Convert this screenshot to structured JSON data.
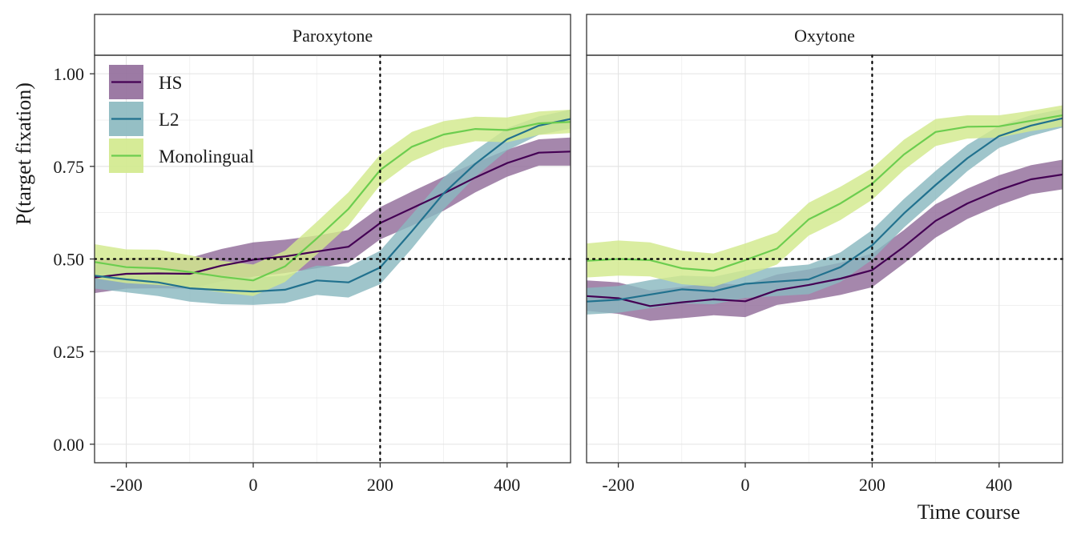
{
  "chart_data": {
    "type": "line",
    "ylabel": "P(target fixation)",
    "xlabel": "Time course",
    "xlim": [
      -250,
      500
    ],
    "ylim": [
      -0.05,
      1.05
    ],
    "x_ticks": [
      "-200",
      "0",
      "200",
      "400"
    ],
    "y_ticks": [
      "0.00",
      "0.25",
      "0.50",
      "0.75",
      "1.00"
    ],
    "x_tick_values": [
      -200,
      0,
      200,
      400
    ],
    "y_tick_values": [
      0,
      0.25,
      0.5,
      0.75,
      1.0
    ],
    "grid": true,
    "reference_lines": {
      "x": 200,
      "y": 0.5
    },
    "legend_position": "top-left",
    "legend": [
      {
        "name": "HS",
        "color": "#440154"
      },
      {
        "name": "L2",
        "color": "#21718e"
      },
      {
        "name": "Monolingual",
        "color": "#6ccd4f"
      }
    ],
    "panels": [
      {
        "title": "Paroxytone",
        "x": [
          -250,
          -200,
          -150,
          -100,
          -50,
          0,
          50,
          100,
          150,
          200,
          250,
          300,
          350,
          400,
          450,
          500
        ],
        "series": [
          {
            "name": "HS",
            "color": "#440154",
            "fill": "#916c9a",
            "y": [
              0.45,
              0.46,
              0.461,
              0.46,
              0.482,
              0.498,
              0.507,
              0.52,
              0.533,
              0.597,
              0.637,
              0.677,
              0.72,
              0.759,
              0.787,
              0.79
            ],
            "lower": [
              0.408,
              0.42,
              0.421,
              0.42,
              0.44,
              0.452,
              0.462,
              0.475,
              0.49,
              0.553,
              0.59,
              0.63,
              0.68,
              0.722,
              0.752,
              0.752
            ],
            "upper": [
              0.495,
              0.503,
              0.505,
              0.503,
              0.527,
              0.545,
              0.552,
              0.563,
              0.578,
              0.64,
              0.682,
              0.722,
              0.76,
              0.795,
              0.823,
              0.828
            ]
          },
          {
            "name": "L2",
            "color": "#21718e",
            "fill": "#8ab8bf",
            "y": [
              0.455,
              0.445,
              0.437,
              0.421,
              0.416,
              0.412,
              0.417,
              0.442,
              0.437,
              0.477,
              0.575,
              0.677,
              0.757,
              0.823,
              0.86,
              0.878
            ],
            "lower": [
              0.42,
              0.41,
              0.4,
              0.385,
              0.378,
              0.376,
              0.381,
              0.403,
              0.396,
              0.432,
              0.528,
              0.634,
              0.722,
              0.793,
              0.835,
              0.852
            ],
            "upper": [
              0.492,
              0.482,
              0.474,
              0.458,
              0.455,
              0.45,
              0.455,
              0.482,
              0.479,
              0.522,
              0.62,
              0.72,
              0.793,
              0.853,
              0.885,
              0.903
            ]
          },
          {
            "name": "Monolingual",
            "color": "#6ccd4f",
            "fill": "#d2e98c",
            "y": [
              0.492,
              0.478,
              0.475,
              0.465,
              0.452,
              0.442,
              0.48,
              0.555,
              0.635,
              0.74,
              0.803,
              0.836,
              0.851,
              0.848,
              0.866,
              0.87
            ],
            "lower": [
              0.448,
              0.435,
              0.43,
              0.422,
              0.41,
              0.4,
              0.438,
              0.512,
              0.59,
              0.7,
              0.763,
              0.8,
              0.818,
              0.815,
              0.835,
              0.84
            ],
            "upper": [
              0.54,
              0.526,
              0.525,
              0.51,
              0.495,
              0.485,
              0.522,
              0.6,
              0.68,
              0.782,
              0.843,
              0.872,
              0.884,
              0.882,
              0.898,
              0.903
            ]
          }
        ]
      },
      {
        "title": "Oxytone",
        "x": [
          -250,
          -200,
          -150,
          -100,
          -50,
          0,
          50,
          100,
          150,
          200,
          250,
          300,
          350,
          400,
          450,
          500
        ],
        "series": [
          {
            "name": "HS",
            "color": "#440154",
            "fill": "#916c9a",
            "y": [
              0.4,
              0.394,
              0.373,
              0.383,
              0.391,
              0.386,
              0.416,
              0.43,
              0.447,
              0.47,
              0.533,
              0.603,
              0.65,
              0.686,
              0.715,
              0.728
            ],
            "lower": [
              0.36,
              0.352,
              0.333,
              0.34,
              0.348,
              0.343,
              0.376,
              0.388,
              0.403,
              0.424,
              0.488,
              0.558,
              0.608,
              0.645,
              0.675,
              0.688
            ],
            "upper": [
              0.442,
              0.437,
              0.415,
              0.425,
              0.435,
              0.43,
              0.458,
              0.472,
              0.49,
              0.515,
              0.578,
              0.648,
              0.69,
              0.726,
              0.753,
              0.768
            ]
          },
          {
            "name": "L2",
            "color": "#21718e",
            "fill": "#8ab8bf",
            "y": [
              0.385,
              0.39,
              0.404,
              0.418,
              0.413,
              0.433,
              0.439,
              0.445,
              0.478,
              0.537,
              0.623,
              0.7,
              0.772,
              0.832,
              0.86,
              0.88
            ],
            "lower": [
              0.35,
              0.355,
              0.367,
              0.38,
              0.378,
              0.395,
              0.4,
              0.405,
              0.438,
              0.498,
              0.585,
              0.66,
              0.737,
              0.8,
              0.832,
              0.855
            ],
            "upper": [
              0.422,
              0.427,
              0.443,
              0.455,
              0.452,
              0.47,
              0.478,
              0.485,
              0.518,
              0.578,
              0.662,
              0.738,
              0.808,
              0.86,
              0.888,
              0.905
            ]
          },
          {
            "name": "Monolingual",
            "color": "#6ccd4f",
            "fill": "#d2e98c",
            "y": [
              0.495,
              0.5,
              0.497,
              0.475,
              0.468,
              0.497,
              0.528,
              0.607,
              0.65,
              0.703,
              0.782,
              0.843,
              0.857,
              0.858,
              0.873,
              0.888
            ],
            "lower": [
              0.45,
              0.455,
              0.453,
              0.432,
              0.425,
              0.453,
              0.485,
              0.563,
              0.605,
              0.66,
              0.74,
              0.805,
              0.825,
              0.828,
              0.845,
              0.858
            ],
            "upper": [
              0.542,
              0.55,
              0.545,
              0.522,
              0.515,
              0.542,
              0.572,
              0.652,
              0.695,
              0.745,
              0.822,
              0.878,
              0.888,
              0.888,
              0.9,
              0.915
            ]
          }
        ]
      }
    ]
  }
}
